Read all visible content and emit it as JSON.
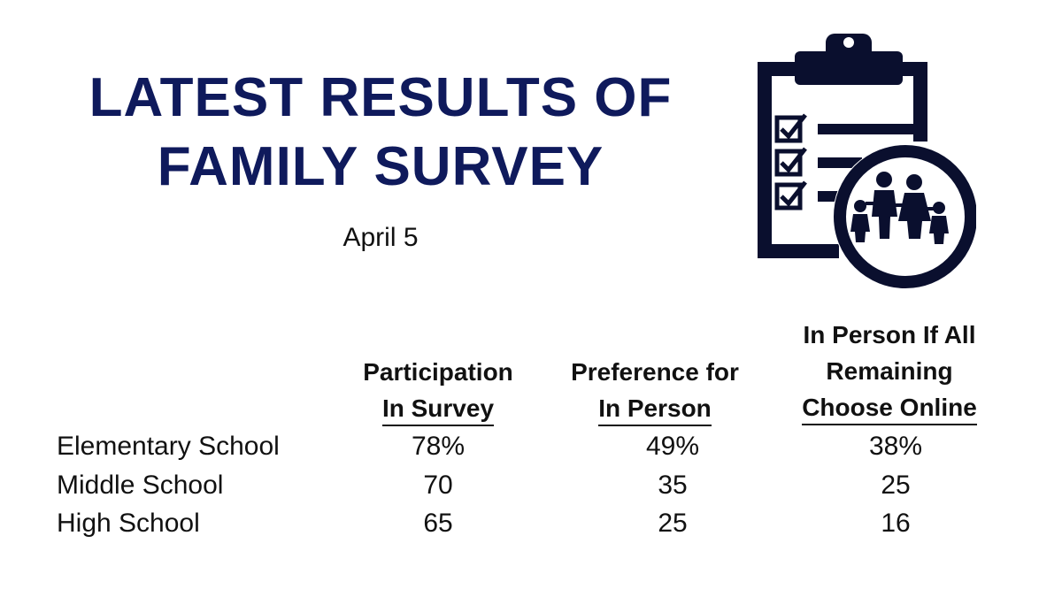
{
  "title": {
    "line1": "LATEST RESULTS OF",
    "line2": "FAMILY SURVEY"
  },
  "date": "April 5",
  "icon": {
    "name": "clipboard-family-icon",
    "color": "#0a0f2e"
  },
  "colors": {
    "title": "#0f1a5c",
    "text": "#111111"
  },
  "chart_data": {
    "type": "table",
    "columns": [
      {
        "lines": [
          "Participation",
          "In Survey"
        ]
      },
      {
        "lines": [
          "Preference for",
          "In Person"
        ]
      },
      {
        "lines": [
          "In Person If All",
          "Remaining",
          "Choose Online"
        ]
      }
    ],
    "rows": [
      {
        "label": "Elementary School",
        "values": [
          "78%",
          "49%",
          "38%"
        ]
      },
      {
        "label": "Middle School",
        "values": [
          "70",
          "35",
          "25"
        ]
      },
      {
        "label": "High School",
        "values": [
          "65",
          "25",
          "16"
        ]
      }
    ]
  }
}
